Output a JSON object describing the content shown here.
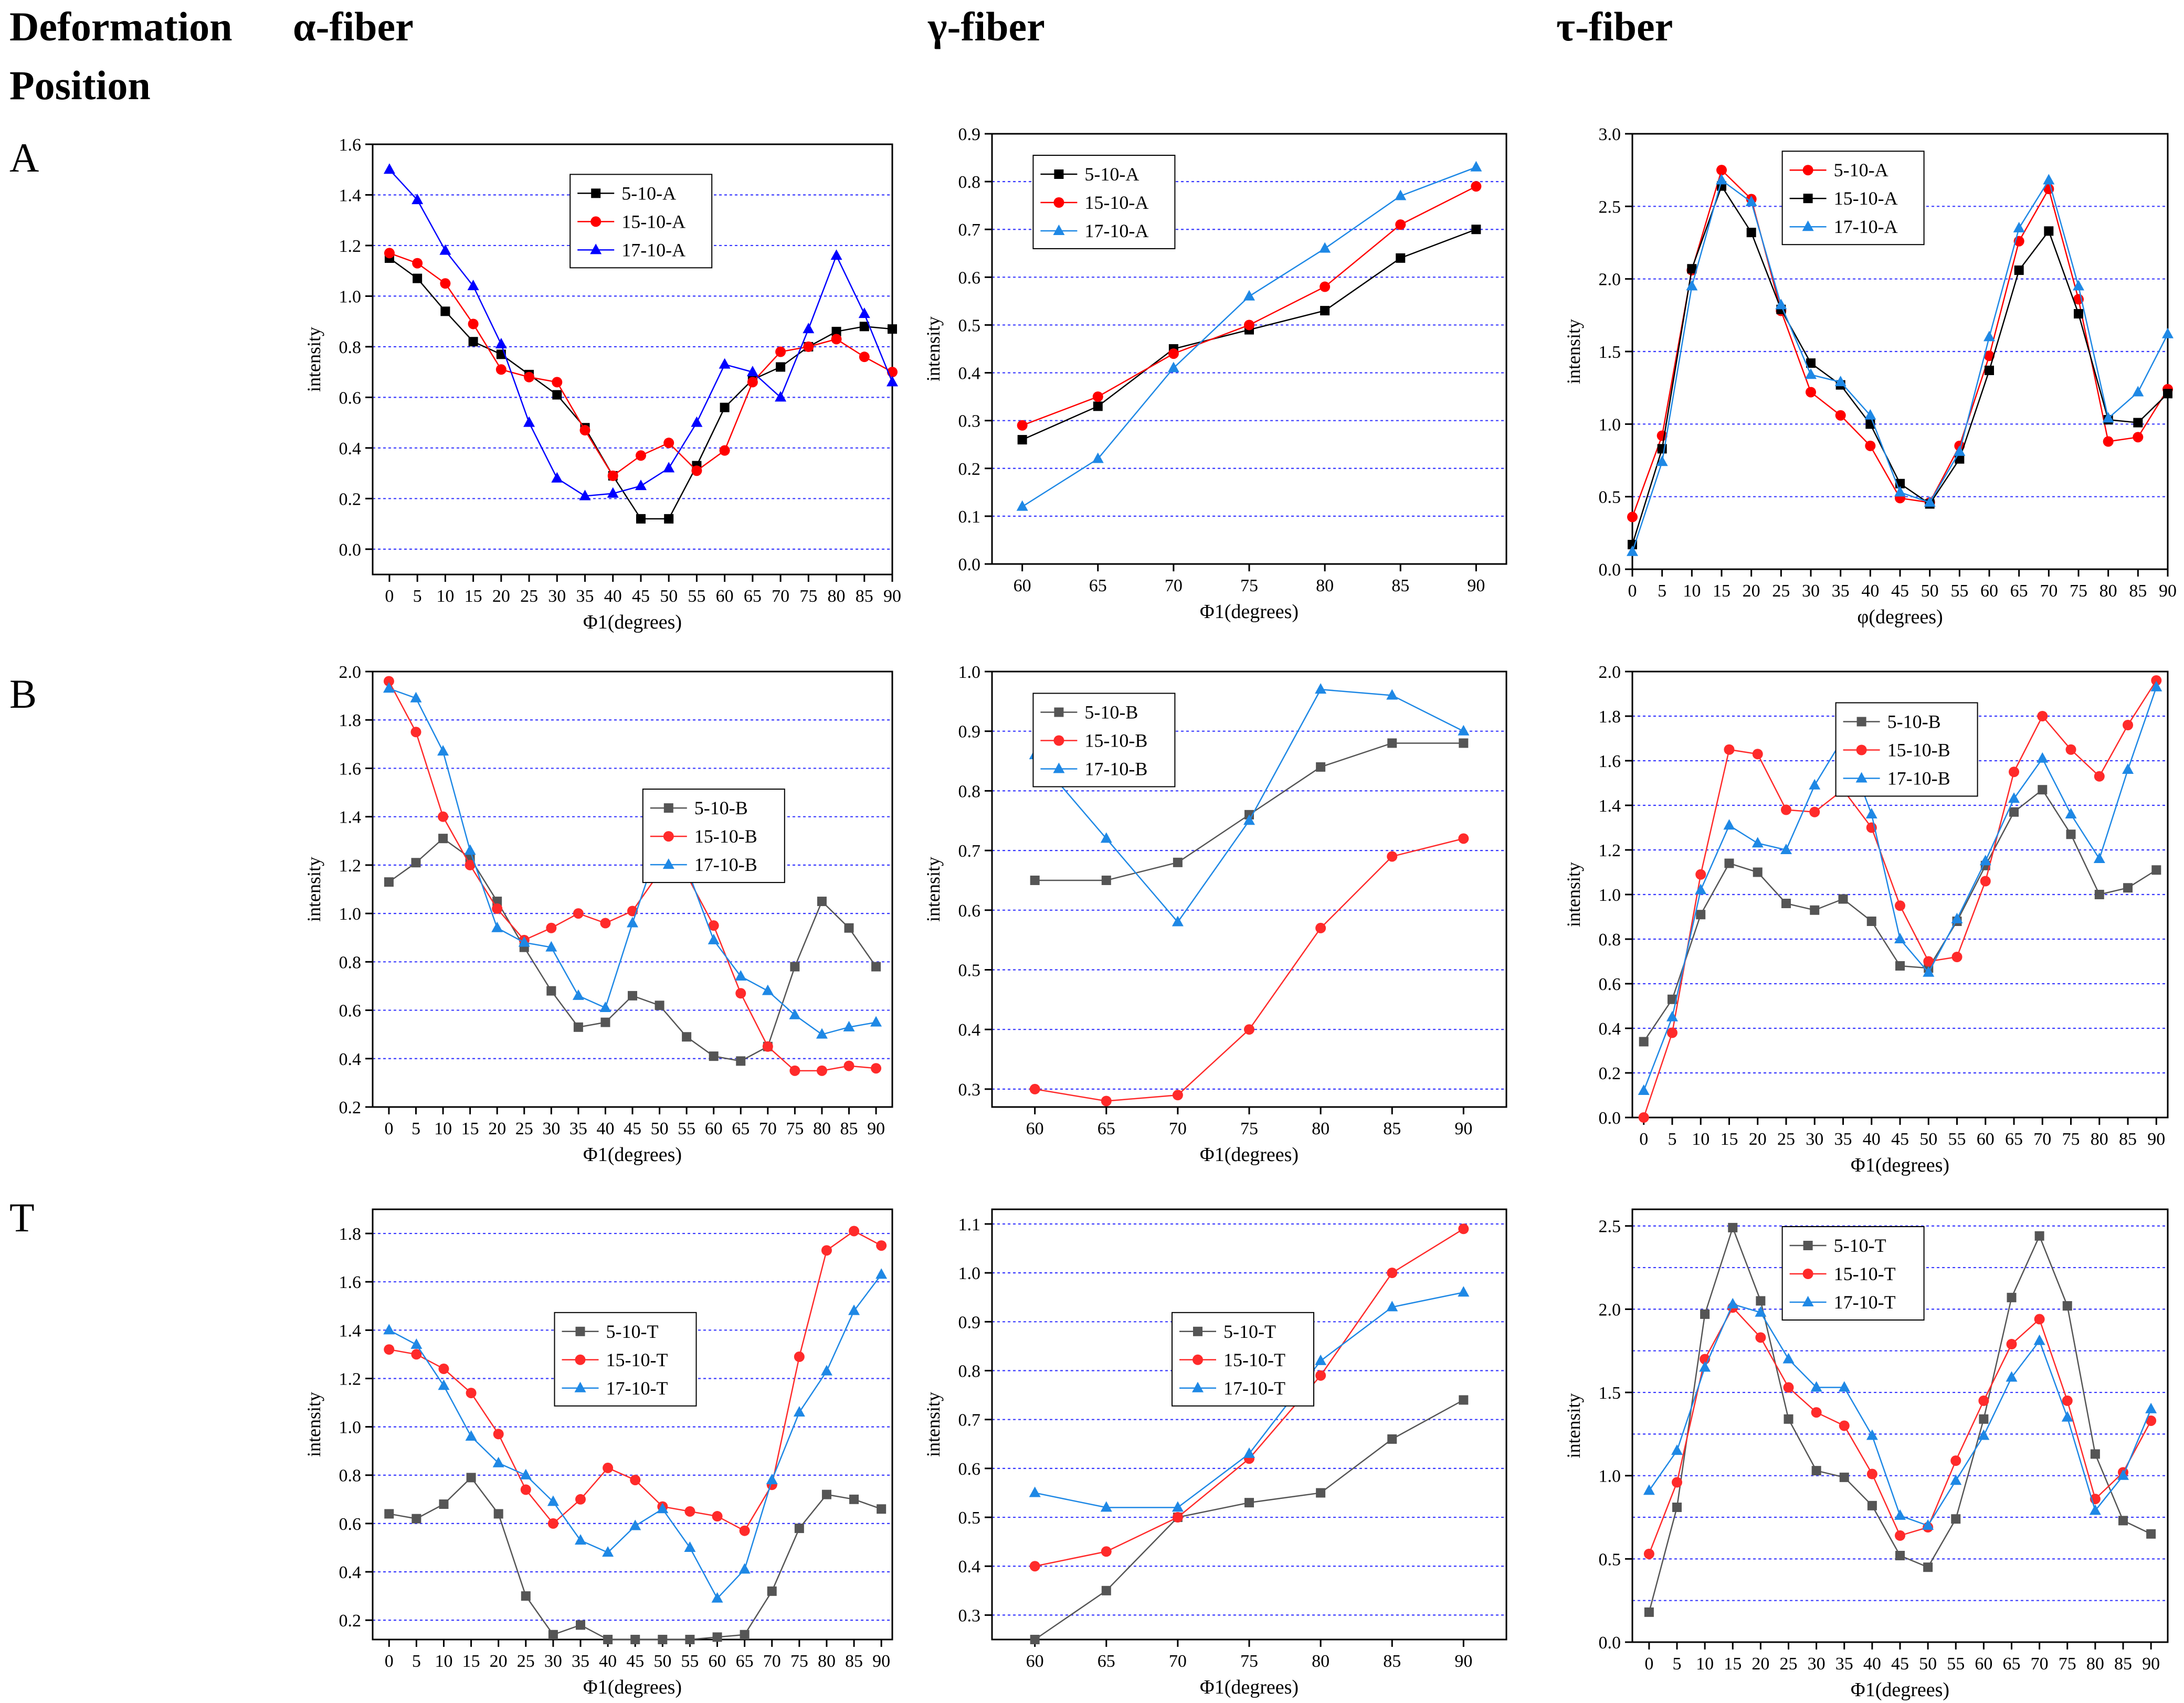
{
  "headers": {
    "deformation": "Deformation",
    "position": "Position",
    "alpha": "α-fiber",
    "gamma": "γ-fiber",
    "tau": "τ-fiber"
  },
  "rows": [
    "A",
    "B",
    "T"
  ],
  "chart_data": [
    {
      "id": "A-alpha",
      "type": "line",
      "xlabel": "Φ1(degrees)",
      "ylabel": "intensity",
      "x": [
        0,
        5,
        10,
        15,
        20,
        25,
        30,
        35,
        40,
        45,
        50,
        55,
        60,
        65,
        70,
        75,
        80,
        85,
        90
      ],
      "xlim": [
        -3,
        90
      ],
      "ylim": [
        -0.1,
        1.6
      ],
      "yticks": [
        0.0,
        0.2,
        0.4,
        0.6,
        0.8,
        1.0,
        1.2,
        1.4,
        1.6
      ],
      "decimals": 1,
      "xticks": [
        0,
        5,
        10,
        15,
        20,
        25,
        30,
        35,
        40,
        45,
        50,
        55,
        60,
        65,
        70,
        75,
        80,
        85,
        90
      ],
      "legend_pos": "top-center",
      "series": [
        {
          "name": "5-10-A",
          "color": "#000000",
          "marker": "square",
          "values": [
            1.15,
            1.07,
            0.94,
            0.82,
            0.77,
            0.69,
            0.61,
            0.48,
            0.29,
            0.12,
            0.12,
            0.33,
            0.56,
            0.67,
            0.72,
            0.8,
            0.86,
            0.88,
            0.87
          ]
        },
        {
          "name": "15-10-A",
          "color": "#ff0000",
          "marker": "circle",
          "values": [
            1.17,
            1.13,
            1.05,
            0.89,
            0.71,
            0.68,
            0.66,
            0.47,
            0.29,
            0.37,
            0.42,
            0.31,
            0.39,
            0.66,
            0.78,
            0.8,
            0.83,
            0.76,
            0.7
          ]
        },
        {
          "name": "17-10-A",
          "color": "#0000ff",
          "marker": "triangle",
          "values": [
            1.5,
            1.38,
            1.18,
            1.04,
            0.81,
            0.5,
            0.28,
            0.21,
            0.22,
            0.25,
            0.32,
            0.5,
            0.73,
            0.7,
            0.6,
            0.87,
            1.16,
            0.93,
            0.66
          ]
        }
      ]
    },
    {
      "id": "A-gamma",
      "type": "line",
      "xlabel": "Φ1(degrees)",
      "ylabel": "intensity",
      "x": [
        60,
        65,
        70,
        75,
        80,
        85,
        90
      ],
      "xlim": [
        58,
        92
      ],
      "ylim": [
        0.0,
        0.9
      ],
      "yticks": [
        0.0,
        0.1,
        0.2,
        0.3,
        0.4,
        0.5,
        0.6,
        0.7,
        0.8,
        0.9
      ],
      "decimals": 1,
      "xticks": [
        60,
        65,
        70,
        75,
        80,
        85,
        90
      ],
      "legend_pos": "top-left",
      "series": [
        {
          "name": "5-10-A",
          "color": "#000000",
          "marker": "square",
          "values": [
            0.26,
            0.33,
            0.45,
            0.49,
            0.53,
            0.64,
            0.7
          ]
        },
        {
          "name": "15-10-A",
          "color": "#ff0000",
          "marker": "circle",
          "values": [
            0.29,
            0.35,
            0.44,
            0.5,
            0.58,
            0.71,
            0.79
          ]
        },
        {
          "name": "17-10-A",
          "color": "#1e88e5",
          "marker": "triangle",
          "values": [
            0.12,
            0.22,
            0.41,
            0.56,
            0.66,
            0.77,
            0.83
          ]
        }
      ]
    },
    {
      "id": "A-tau",
      "type": "line",
      "xlabel": "φ(degrees)",
      "ylabel": "intensity",
      "x": [
        0,
        5,
        10,
        15,
        20,
        25,
        30,
        35,
        40,
        45,
        50,
        55,
        60,
        65,
        70,
        75,
        80,
        85,
        90
      ],
      "xlim": [
        0,
        90
      ],
      "ylim": [
        0.0,
        3.0
      ],
      "yticks": [
        0.0,
        0.5,
        1.0,
        1.5,
        2.0,
        2.5,
        3.0
      ],
      "decimals": 1,
      "xticks": [
        0,
        5,
        10,
        15,
        20,
        25,
        30,
        35,
        40,
        45,
        50,
        55,
        60,
        65,
        70,
        75,
        80,
        85,
        90
      ],
      "legend_pos": "top-left-center",
      "series": [
        {
          "name": "5-10-A",
          "color": "#ff0000",
          "marker": "circle",
          "values": [
            0.36,
            0.92,
            2.06,
            2.75,
            2.55,
            1.78,
            1.22,
            1.06,
            0.85,
            0.49,
            0.46,
            0.85,
            1.47,
            2.26,
            2.62,
            1.86,
            0.88,
            0.91,
            1.24
          ]
        },
        {
          "name": "15-10-A",
          "color": "#000000",
          "marker": "square",
          "values": [
            0.17,
            0.83,
            2.07,
            2.64,
            2.32,
            1.79,
            1.42,
            1.27,
            1.0,
            0.59,
            0.45,
            0.76,
            1.37,
            2.06,
            2.33,
            1.76,
            1.03,
            1.01,
            1.21
          ]
        },
        {
          "name": "17-10-A",
          "color": "#1e88e5",
          "marker": "triangle",
          "values": [
            0.12,
            0.74,
            1.95,
            2.68,
            2.53,
            1.82,
            1.34,
            1.29,
            1.06,
            0.53,
            0.46,
            0.81,
            1.6,
            2.35,
            2.68,
            1.95,
            1.04,
            1.22,
            1.62
          ]
        }
      ]
    },
    {
      "id": "B-alpha",
      "type": "line",
      "xlabel": "Φ1(degrees)",
      "ylabel": "intensity",
      "x": [
        0,
        5,
        10,
        15,
        20,
        25,
        30,
        35,
        40,
        45,
        50,
        55,
        60,
        65,
        70,
        75,
        80,
        85,
        90
      ],
      "xlim": [
        -3,
        93
      ],
      "ylim": [
        0.2,
        2.0
      ],
      "yticks": [
        0.2,
        0.4,
        0.6,
        0.8,
        1.0,
        1.2,
        1.4,
        1.6,
        1.8,
        2.0
      ],
      "decimals": 1,
      "xticks": [
        0,
        5,
        10,
        15,
        20,
        25,
        30,
        35,
        40,
        45,
        50,
        55,
        60,
        65,
        70,
        75,
        80,
        85,
        90
      ],
      "legend_pos": "mid-right",
      "series": [
        {
          "name": "5-10-B",
          "color": "#555555",
          "marker": "square",
          "values": [
            1.13,
            1.21,
            1.31,
            1.23,
            1.05,
            0.86,
            0.68,
            0.53,
            0.55,
            0.66,
            0.62,
            0.49,
            0.41,
            0.39,
            0.45,
            0.78,
            1.05,
            0.94,
            0.78
          ]
        },
        {
          "name": "15-10-B",
          "color": "#ff2a2a",
          "marker": "circle",
          "values": [
            1.96,
            1.75,
            1.4,
            1.2,
            1.02,
            0.89,
            0.94,
            1.0,
            0.96,
            1.01,
            1.17,
            1.16,
            0.95,
            0.67,
            0.45,
            0.35,
            0.35,
            0.37,
            0.36
          ]
        },
        {
          "name": "17-10-B",
          "color": "#1e88e5",
          "marker": "triangle",
          "values": [
            1.93,
            1.89,
            1.67,
            1.26,
            0.94,
            0.88,
            0.86,
            0.66,
            0.61,
            0.96,
            1.29,
            1.19,
            0.89,
            0.74,
            0.68,
            0.58,
            0.5,
            0.53,
            0.55
          ]
        }
      ]
    },
    {
      "id": "B-gamma",
      "type": "line",
      "xlabel": "Φ1(degrees)",
      "ylabel": "intensity",
      "x": [
        60,
        65,
        70,
        75,
        80,
        85,
        90
      ],
      "xlim": [
        57,
        93
      ],
      "ylim": [
        0.27,
        1.0
      ],
      "yticks": [
        0.3,
        0.4,
        0.5,
        0.6,
        0.7,
        0.8,
        0.9,
        1.0
      ],
      "decimals": 1,
      "xticks": [
        60,
        65,
        70,
        75,
        80,
        85,
        90
      ],
      "legend_pos": "top-left",
      "series": [
        {
          "name": "5-10-B",
          "color": "#555555",
          "marker": "square",
          "values": [
            0.65,
            0.65,
            0.68,
            0.76,
            0.84,
            0.88,
            0.88
          ]
        },
        {
          "name": "15-10-B",
          "color": "#ff2a2a",
          "marker": "circle",
          "values": [
            0.3,
            0.28,
            0.29,
            0.4,
            0.57,
            0.69,
            0.72
          ]
        },
        {
          "name": "17-10-B",
          "color": "#1e88e5",
          "marker": "triangle",
          "values": [
            0.86,
            0.72,
            0.58,
            0.75,
            0.97,
            0.96,
            0.9
          ]
        }
      ]
    },
    {
      "id": "B-tau",
      "type": "line",
      "xlabel": "Φ1(degrees)",
      "ylabel": "intensity",
      "x": [
        0,
        5,
        10,
        15,
        20,
        25,
        30,
        35,
        40,
        45,
        50,
        55,
        60,
        65,
        70,
        75,
        80,
        85,
        90
      ],
      "xlim": [
        -2,
        92
      ],
      "ylim": [
        0.0,
        2.0
      ],
      "yticks": [
        0.0,
        0.2,
        0.4,
        0.6,
        0.8,
        1.0,
        1.2,
        1.4,
        1.6,
        1.8,
        2.0
      ],
      "decimals": 1,
      "xticks": [
        0,
        5,
        10,
        15,
        20,
        25,
        30,
        35,
        40,
        45,
        50,
        55,
        60,
        65,
        70,
        75,
        80,
        85,
        90
      ],
      "legend_pos": "top-center",
      "series": [
        {
          "name": "5-10-B",
          "color": "#555555",
          "marker": "square",
          "values": [
            0.34,
            0.53,
            0.91,
            1.14,
            1.1,
            0.96,
            0.93,
            0.98,
            0.88,
            0.68,
            0.67,
            0.88,
            1.13,
            1.37,
            1.47,
            1.27,
            1.0,
            1.03,
            1.11
          ]
        },
        {
          "name": "15-10-B",
          "color": "#ff2a2a",
          "marker": "circle",
          "values": [
            0.0,
            0.38,
            1.09,
            1.65,
            1.63,
            1.38,
            1.37,
            1.47,
            1.3,
            0.95,
            0.7,
            0.72,
            1.06,
            1.55,
            1.8,
            1.65,
            1.53,
            1.76,
            1.96
          ]
        },
        {
          "name": "17-10-B",
          "color": "#1e88e5",
          "marker": "triangle",
          "values": [
            0.12,
            0.45,
            1.02,
            1.31,
            1.23,
            1.2,
            1.49,
            1.7,
            1.36,
            0.8,
            0.65,
            0.89,
            1.15,
            1.43,
            1.61,
            1.36,
            1.16,
            1.56,
            1.93
          ]
        }
      ]
    },
    {
      "id": "T-alpha",
      "type": "line",
      "xlabel": "Φ1(degrees)",
      "ylabel": "intensity",
      "x": [
        0,
        5,
        10,
        15,
        20,
        25,
        30,
        35,
        40,
        45,
        50,
        55,
        60,
        65,
        70,
        75,
        80,
        85,
        90
      ],
      "xlim": [
        -3,
        92
      ],
      "ylim": [
        0.12,
        1.9
      ],
      "yticks": [
        0.2,
        0.4,
        0.6,
        0.8,
        1.0,
        1.2,
        1.4,
        1.6,
        1.8
      ],
      "decimals": 1,
      "xticks": [
        0,
        5,
        10,
        15,
        20,
        25,
        30,
        35,
        40,
        45,
        50,
        55,
        60,
        65,
        70,
        75,
        80,
        85,
        90
      ],
      "legend_pos": "mid-center",
      "series": [
        {
          "name": "5-10-T",
          "color": "#555555",
          "marker": "square",
          "values": [
            0.64,
            0.62,
            0.68,
            0.79,
            0.64,
            0.3,
            0.14,
            0.18,
            0.12,
            0.12,
            0.12,
            0.12,
            0.13,
            0.14,
            0.32,
            0.58,
            0.72,
            0.7,
            0.66
          ]
        },
        {
          "name": "15-10-T",
          "color": "#ff2a2a",
          "marker": "circle",
          "values": [
            1.32,
            1.3,
            1.24,
            1.14,
            0.97,
            0.74,
            0.6,
            0.7,
            0.83,
            0.78,
            0.67,
            0.65,
            0.63,
            0.57,
            0.76,
            1.29,
            1.73,
            1.81,
            1.75
          ]
        },
        {
          "name": "17-10-T",
          "color": "#1e88e5",
          "marker": "triangle",
          "values": [
            1.4,
            1.34,
            1.17,
            0.96,
            0.85,
            0.8,
            0.69,
            0.53,
            0.48,
            0.59,
            0.66,
            0.5,
            0.29,
            0.41,
            0.78,
            1.06,
            1.23,
            1.48,
            1.63
          ]
        }
      ]
    },
    {
      "id": "T-gamma",
      "type": "line",
      "xlabel": "Φ1(degrees)",
      "ylabel": "intensity",
      "x": [
        60,
        65,
        70,
        75,
        80,
        85,
        90
      ],
      "xlim": [
        57,
        93
      ],
      "ylim": [
        0.25,
        1.13
      ],
      "yticks": [
        0.3,
        0.4,
        0.5,
        0.6,
        0.7,
        0.8,
        0.9,
        1.0,
        1.1
      ],
      "decimals": 1,
      "xticks": [
        60,
        65,
        70,
        75,
        80,
        85,
        90
      ],
      "legend_pos": "mid-center",
      "series": [
        {
          "name": "5-10-T",
          "color": "#555555",
          "marker": "square",
          "values": [
            0.25,
            0.35,
            0.5,
            0.53,
            0.55,
            0.66,
            0.74
          ]
        },
        {
          "name": "15-10-T",
          "color": "#ff2a2a",
          "marker": "circle",
          "values": [
            0.4,
            0.43,
            0.5,
            0.62,
            0.79,
            1.0,
            1.09
          ]
        },
        {
          "name": "17-10-T",
          "color": "#1e88e5",
          "marker": "triangle",
          "values": [
            0.55,
            0.52,
            0.52,
            0.63,
            0.82,
            0.93,
            0.96
          ]
        }
      ]
    },
    {
      "id": "T-tau",
      "type": "line",
      "xlabel": "Φ1(degrees)",
      "ylabel": "intensity",
      "x": [
        0,
        5,
        10,
        15,
        20,
        25,
        30,
        35,
        40,
        45,
        50,
        55,
        60,
        65,
        70,
        75,
        80,
        85,
        90
      ],
      "xlim": [
        -3,
        93
      ],
      "ylim": [
        0.0,
        2.6
      ],
      "yticks": [
        0.0,
        0.5,
        1.0,
        1.5,
        2.0,
        2.5
      ],
      "decimals": 1,
      "gridlines": [
        0.25,
        0.5,
        0.75,
        1.0,
        1.25,
        1.5,
        1.75,
        2.0,
        2.25,
        2.5
      ],
      "xticks": [
        0,
        5,
        10,
        15,
        20,
        25,
        30,
        35,
        40,
        45,
        50,
        55,
        60,
        65,
        70,
        75,
        80,
        85,
        90
      ],
      "legend_pos": "top-left-center",
      "series": [
        {
          "name": "5-10-T",
          "color": "#555555",
          "marker": "square",
          "values": [
            0.18,
            0.81,
            1.97,
            2.49,
            2.05,
            1.34,
            1.03,
            0.99,
            0.82,
            0.52,
            0.45,
            0.74,
            1.34,
            2.07,
            2.44,
            2.02,
            1.13,
            0.73,
            0.65
          ]
        },
        {
          "name": "15-10-T",
          "color": "#ff2a2a",
          "marker": "circle",
          "values": [
            0.53,
            0.96,
            1.7,
            2.01,
            1.83,
            1.53,
            1.38,
            1.3,
            1.01,
            0.64,
            0.69,
            1.09,
            1.45,
            1.79,
            1.94,
            1.45,
            0.86,
            1.02,
            1.33
          ]
        },
        {
          "name": "17-10-T",
          "color": "#1e88e5",
          "marker": "triangle",
          "values": [
            0.91,
            1.15,
            1.65,
            2.03,
            1.98,
            1.7,
            1.53,
            1.53,
            1.24,
            0.76,
            0.7,
            0.97,
            1.24,
            1.59,
            1.81,
            1.35,
            0.79,
            1.0,
            1.4
          ]
        }
      ]
    }
  ]
}
